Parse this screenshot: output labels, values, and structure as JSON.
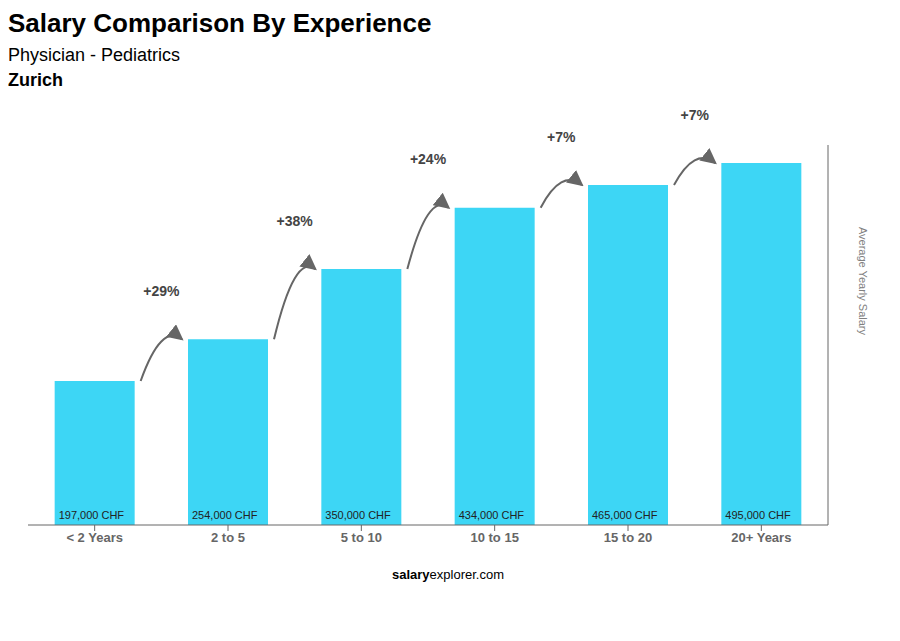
{
  "chart_data": {
    "type": "bar",
    "title": "Salary Comparison By Experience",
    "subtitle": "Physician - Pediatrics",
    "location": "Zurich",
    "ylabel": "Average Yearly Salary",
    "categories": [
      "< 2 Years",
      "2 to 5",
      "5 to 10",
      "10 to 15",
      "15 to 20",
      "20+ Years"
    ],
    "values": [
      197000,
      254000,
      350000,
      434000,
      465000,
      495000
    ],
    "value_labels": [
      "197,000 CHF",
      "254,000 CHF",
      "350,000 CHF",
      "434,000 CHF",
      "465,000 CHF",
      "495,000 CHF"
    ],
    "data_labels": true,
    "change_labels": [
      "+29%",
      "+38%",
      "+24%",
      "+7%",
      "+7%"
    ],
    "color": "#3dd6f5",
    "ylim": [
      0,
      519750
    ],
    "grid": false,
    "tick_labels": "x",
    "watermark": [
      "salary",
      "explorer.com"
    ]
  }
}
